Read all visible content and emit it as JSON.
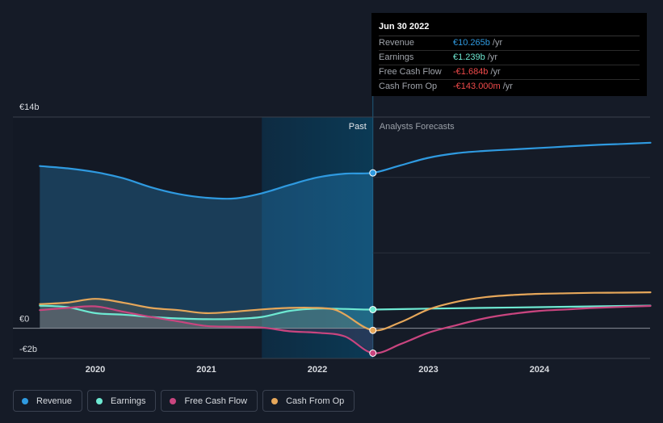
{
  "tooltip": {
    "date": "Jun 30 2022",
    "rows": [
      {
        "label": "Revenue",
        "value": "€10.265b",
        "unit": "/yr",
        "color": "#2f9ae0"
      },
      {
        "label": "Earnings",
        "value": "€1.239b",
        "unit": "/yr",
        "color": "#6ee9d2"
      },
      {
        "label": "Free Cash Flow",
        "value": "-€1.684b",
        "unit": "/yr",
        "color": "#f04a4a"
      },
      {
        "label": "Cash From Op",
        "value": "-€143.000m",
        "unit": "/yr",
        "color": "#f04a4a"
      }
    ]
  },
  "legend": [
    {
      "label": "Revenue",
      "color": "#2f9ae0"
    },
    {
      "label": "Earnings",
      "color": "#6ee9d2"
    },
    {
      "label": "Free Cash Flow",
      "color": "#c9457f"
    },
    {
      "label": "Cash From Op",
      "color": "#e6a75a"
    }
  ],
  "chart_data": {
    "type": "line",
    "ylim": [
      -2,
      14
    ],
    "xlim": [
      2019.35,
      2025.0
    ],
    "y_tick_labels": [
      {
        "value": 14,
        "label": "€14b"
      },
      {
        "value": 0,
        "label": "€0"
      },
      {
        "value": -2,
        "label": "-€2b"
      }
    ],
    "x_ticks": [
      {
        "value": 2020,
        "label": "2020"
      },
      {
        "value": 2021,
        "label": "2021"
      },
      {
        "value": 2022,
        "label": "2022"
      },
      {
        "value": 2023,
        "label": "2023"
      },
      {
        "value": 2024,
        "label": "2024"
      }
    ],
    "past_label": "Past",
    "forecast_label": "Analysts Forecasts",
    "divider_x": 2022.5,
    "highlight_start": 2021.5,
    "series": [
      {
        "name": "Revenue",
        "color": "#2f9ae0",
        "x": [
          2019.5,
          2019.75,
          2020.0,
          2020.25,
          2020.5,
          2020.75,
          2021.0,
          2021.25,
          2021.5,
          2021.75,
          2022.0,
          2022.25,
          2022.5,
          2022.75,
          2023.0,
          2023.25,
          2023.5,
          2023.75,
          2024.0,
          2024.25,
          2024.5,
          2024.75,
          2025.0
        ],
        "y": [
          10.75,
          10.6,
          10.35,
          9.95,
          9.35,
          8.9,
          8.65,
          8.6,
          8.95,
          9.5,
          10.0,
          10.25,
          10.3,
          10.8,
          11.3,
          11.6,
          11.75,
          11.85,
          11.95,
          12.05,
          12.15,
          12.22,
          12.3
        ]
      },
      {
        "name": "Earnings",
        "color": "#6ee9d2",
        "x": [
          2019.5,
          2019.75,
          2020.0,
          2020.25,
          2020.5,
          2020.75,
          2021.0,
          2021.25,
          2021.5,
          2021.75,
          2022.0,
          2022.25,
          2022.5,
          2023.0,
          2023.5,
          2024.0,
          2024.5,
          2025.0
        ],
        "y": [
          1.5,
          1.4,
          1.0,
          0.9,
          0.75,
          0.65,
          0.6,
          0.62,
          0.75,
          1.15,
          1.3,
          1.28,
          1.24,
          1.3,
          1.35,
          1.4,
          1.45,
          1.5
        ]
      },
      {
        "name": "Free Cash Flow",
        "color": "#c9457f",
        "x": [
          2019.5,
          2019.75,
          2020.0,
          2020.25,
          2020.5,
          2020.75,
          2021.0,
          2021.25,
          2021.5,
          2021.75,
          2022.0,
          2022.25,
          2022.5,
          2022.75,
          2023.0,
          2023.25,
          2023.5,
          2023.75,
          2024.0,
          2024.25,
          2024.5,
          2024.75,
          2025.0
        ],
        "y": [
          1.2,
          1.35,
          1.45,
          1.1,
          0.75,
          0.45,
          0.15,
          0.1,
          0.05,
          -0.2,
          -0.3,
          -0.55,
          -1.65,
          -1.05,
          -0.3,
          0.2,
          0.65,
          0.95,
          1.15,
          1.25,
          1.35,
          1.42,
          1.48
        ]
      },
      {
        "name": "Cash From Op",
        "color": "#e6a75a",
        "x": [
          2019.5,
          2019.75,
          2020.0,
          2020.25,
          2020.5,
          2020.75,
          2021.0,
          2021.25,
          2021.5,
          2021.75,
          2022.0,
          2022.15,
          2022.25,
          2022.5,
          2022.75,
          2023.0,
          2023.25,
          2023.5,
          2023.75,
          2024.0,
          2024.25,
          2024.5,
          2024.75,
          2025.0
        ],
        "y": [
          1.6,
          1.7,
          1.95,
          1.7,
          1.35,
          1.2,
          1.0,
          1.1,
          1.25,
          1.35,
          1.35,
          1.25,
          0.9,
          -0.14,
          0.4,
          1.25,
          1.75,
          2.05,
          2.2,
          2.28,
          2.32,
          2.35,
          2.36,
          2.38
        ]
      }
    ]
  }
}
